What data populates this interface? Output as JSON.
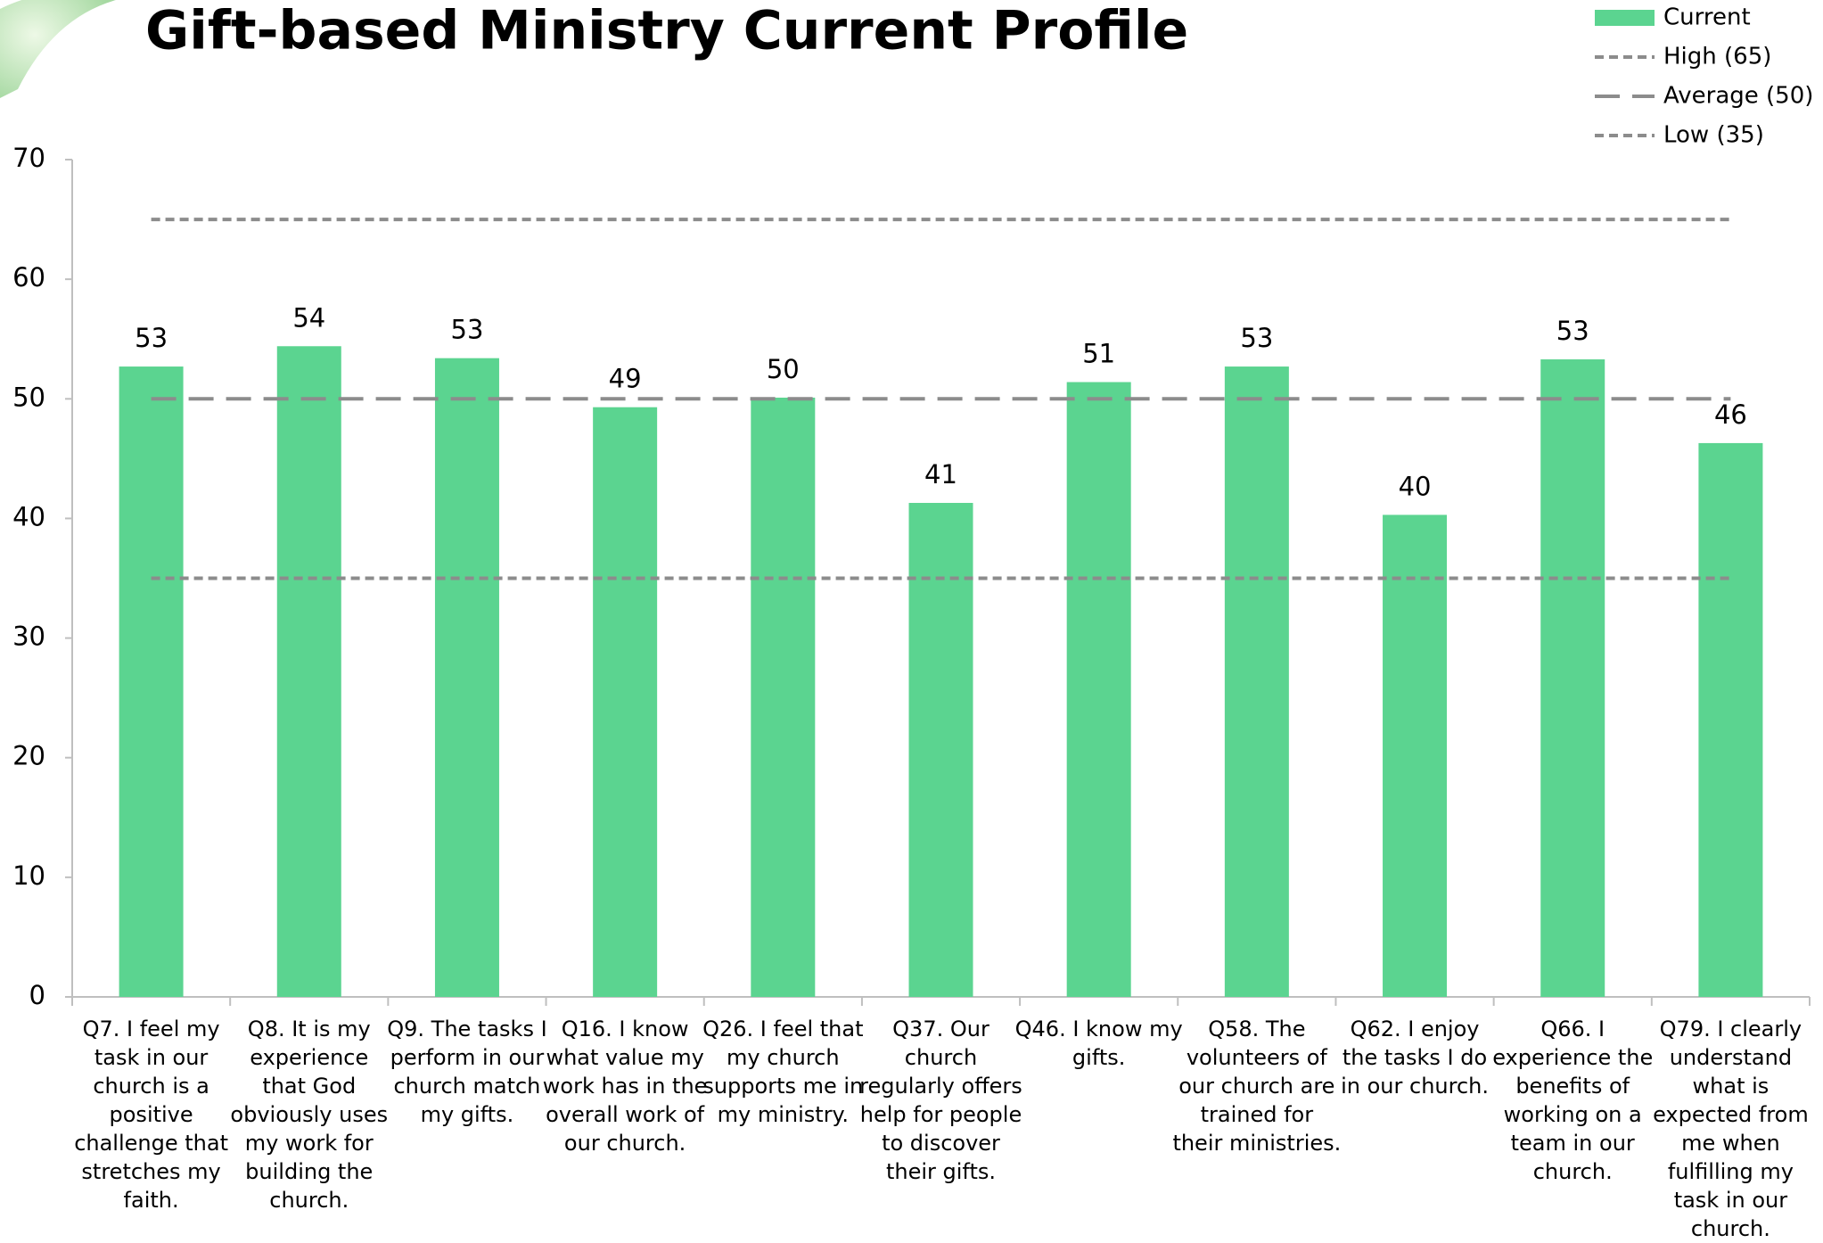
{
  "chart_data": {
    "type": "bar",
    "title": "Gift-based Ministry Current Profile",
    "categories": [
      "Q7. I feel my task in our church is a positive challenge that stretches my faith.",
      "Q8. It is my experience that God obviously uses my work for building the church.",
      "Q9. The tasks I perform in our church match my gifts.",
      "Q16. I know what value my work has in the overall work of our church.",
      "Q26. I feel that my church supports me in my ministry.",
      "Q37. Our church regularly offers help for people to discover their gifts.",
      "Q46. I know my gifts.",
      "Q58. The volunteers of our church are trained for their ministries.",
      "Q62. I enjoy the tasks I do in our church.",
      "Q66. I experience the benefits of working on a team in our church.",
      "Q79. I clearly understand what is expected from me when fulfilling my task in our church."
    ],
    "series": [
      {
        "name": "Current",
        "color": "#5bd490",
        "values": [
          52.7,
          54.4,
          53.4,
          49.3,
          50.1,
          41.3,
          51.4,
          52.7,
          40.3,
          53.3,
          46.3
        ],
        "value_labels": [
          "53",
          "54",
          "53",
          "49",
          "50",
          "41",
          "51",
          "53",
          "40",
          "53",
          "46"
        ]
      }
    ],
    "reference_lines": [
      {
        "name": "High (65)",
        "value": 65,
        "color": "#8c8c8c",
        "dash": "short"
      },
      {
        "name": "Average (50)",
        "value": 50,
        "color": "#8c8c8c",
        "dash": "long"
      },
      {
        "name": "Low (35)",
        "value": 35,
        "color": "#8c8c8c",
        "dash": "short"
      }
    ],
    "ylim": [
      0,
      70
    ],
    "yticks": [
      0,
      10,
      20,
      30,
      40,
      50,
      60,
      70
    ],
    "legend": "top-right"
  }
}
